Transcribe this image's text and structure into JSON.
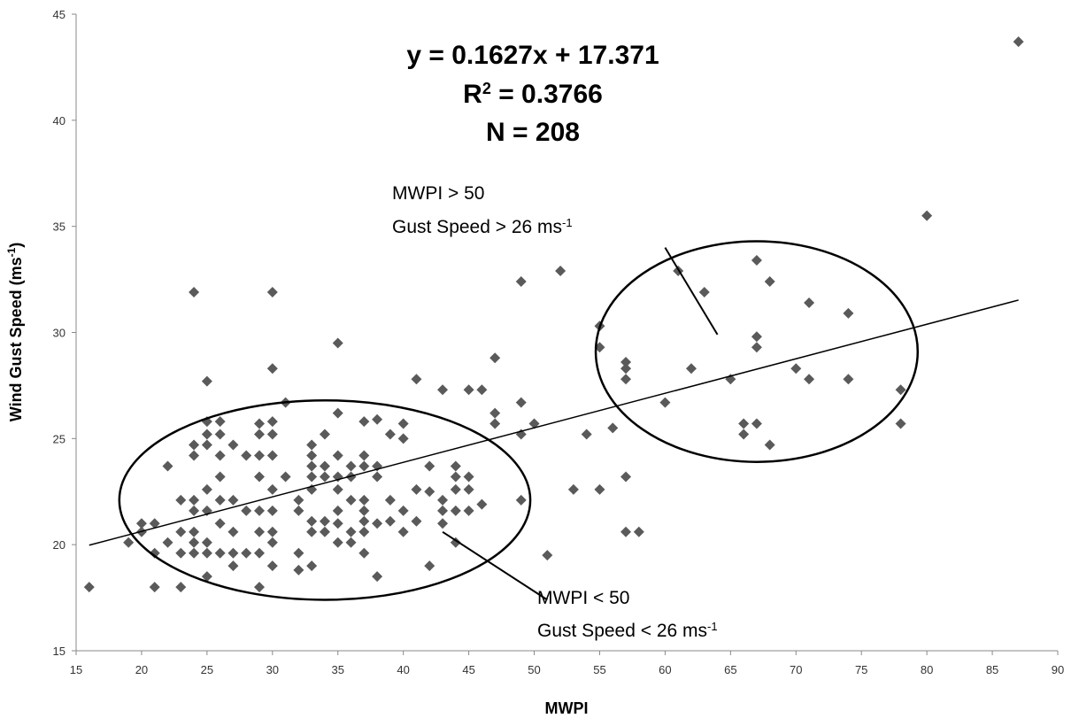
{
  "chart_data": {
    "type": "scatter",
    "xlabel": "MWPI",
    "ylabel": "Wind Gust Speed (ms",
    "ylabel_sup": "-1",
    "ylabel_close": ")",
    "xlim": [
      15,
      90
    ],
    "ylim": [
      15,
      45
    ],
    "xticks": [
      15,
      20,
      25,
      30,
      35,
      40,
      45,
      50,
      55,
      60,
      65,
      70,
      75,
      80,
      85,
      90
    ],
    "yticks": [
      15,
      20,
      25,
      30,
      35,
      40,
      45
    ],
    "grid": false,
    "marker_color": "#5a5a5a",
    "equation": "y = 0.1627x + 17.371",
    "r2_label": "R",
    "r2_sup": "2",
    "r2_value": " = 0.3766",
    "n_text": "N = 208",
    "trendline": {
      "slope": 0.1627,
      "intercept": 17.371,
      "x_start": 16,
      "x_end": 87
    },
    "ellipses": [
      {
        "cx": 34,
        "cy": 22.1,
        "rx": 15.7,
        "ry": 4.7
      },
      {
        "cx": 67,
        "cy": 29.1,
        "rx": 12.3,
        "ry": 5.2
      }
    ],
    "annotations": {
      "high": {
        "line1": "MWPI > 50",
        "line2": "Gust Speed > 26 ms",
        "sup": "-1",
        "pointer": [
          [
            60,
            34
          ],
          [
            64,
            29.9
          ]
        ]
      },
      "low": {
        "line1": "MWPI < 50",
        "line2": "Gust Speed < 26 ms",
        "sup": "-1",
        "pointer": [
          [
            43,
            20.6
          ],
          [
            51,
            17.4
          ]
        ]
      }
    },
    "points": [
      [
        16,
        18.0
      ],
      [
        19,
        20.1
      ],
      [
        20,
        21.0
      ],
      [
        20,
        20.6
      ],
      [
        21,
        21.0
      ],
      [
        21,
        19.6
      ],
      [
        21,
        18.0
      ],
      [
        22,
        23.7
      ],
      [
        22,
        20.1
      ],
      [
        23,
        22.1
      ],
      [
        23,
        20.6
      ],
      [
        23,
        19.6
      ],
      [
        23,
        18.0
      ],
      [
        24,
        31.9
      ],
      [
        24,
        24.7
      ],
      [
        24,
        24.2
      ],
      [
        24,
        22.1
      ],
      [
        24,
        21.6
      ],
      [
        24,
        20.6
      ],
      [
        24,
        20.1
      ],
      [
        24,
        19.6
      ],
      [
        25,
        27.7
      ],
      [
        25,
        25.8
      ],
      [
        25,
        25.2
      ],
      [
        25,
        24.7
      ],
      [
        25,
        22.6
      ],
      [
        25,
        21.6
      ],
      [
        25,
        20.1
      ],
      [
        25,
        19.6
      ],
      [
        25,
        18.5
      ],
      [
        26,
        25.8
      ],
      [
        26,
        25.2
      ],
      [
        26,
        24.2
      ],
      [
        26,
        23.2
      ],
      [
        26,
        22.1
      ],
      [
        26,
        21.0
      ],
      [
        26,
        19.6
      ],
      [
        27,
        24.7
      ],
      [
        27,
        22.1
      ],
      [
        27,
        20.6
      ],
      [
        27,
        19.6
      ],
      [
        27,
        19.0
      ],
      [
        28,
        24.2
      ],
      [
        28,
        21.6
      ],
      [
        28,
        19.6
      ],
      [
        29,
        25.7
      ],
      [
        29,
        25.2
      ],
      [
        29,
        24.2
      ],
      [
        29,
        23.2
      ],
      [
        29,
        21.6
      ],
      [
        29,
        20.6
      ],
      [
        29,
        19.6
      ],
      [
        29,
        18.0
      ],
      [
        30,
        31.9
      ],
      [
        30,
        28.3
      ],
      [
        30,
        25.8
      ],
      [
        30,
        25.2
      ],
      [
        30,
        24.2
      ],
      [
        30,
        22.6
      ],
      [
        30,
        21.6
      ],
      [
        30,
        20.6
      ],
      [
        30,
        20.1
      ],
      [
        30,
        19.0
      ],
      [
        31,
        26.7
      ],
      [
        31,
        23.2
      ],
      [
        32,
        22.1
      ],
      [
        32,
        21.6
      ],
      [
        32,
        19.6
      ],
      [
        32,
        18.8
      ],
      [
        33,
        24.7
      ],
      [
        33,
        24.2
      ],
      [
        33,
        23.7
      ],
      [
        33,
        23.2
      ],
      [
        33,
        22.6
      ],
      [
        33,
        21.1
      ],
      [
        33,
        20.6
      ],
      [
        33,
        19.0
      ],
      [
        34,
        25.2
      ],
      [
        34,
        23.7
      ],
      [
        34,
        23.2
      ],
      [
        34,
        21.1
      ],
      [
        34,
        20.6
      ],
      [
        35,
        29.5
      ],
      [
        35,
        26.2
      ],
      [
        35,
        24.2
      ],
      [
        35,
        23.2
      ],
      [
        35,
        22.6
      ],
      [
        35,
        21.6
      ],
      [
        35,
        21.0
      ],
      [
        35,
        20.1
      ],
      [
        36,
        23.7
      ],
      [
        36,
        23.2
      ],
      [
        36,
        22.1
      ],
      [
        36,
        20.6
      ],
      [
        36,
        20.1
      ],
      [
        37,
        25.8
      ],
      [
        37,
        24.2
      ],
      [
        37,
        23.7
      ],
      [
        37,
        22.1
      ],
      [
        37,
        21.6
      ],
      [
        37,
        21.1
      ],
      [
        37,
        20.6
      ],
      [
        37,
        19.6
      ],
      [
        38,
        25.9
      ],
      [
        38,
        23.7
      ],
      [
        38,
        23.2
      ],
      [
        38,
        21.0
      ],
      [
        38,
        18.5
      ],
      [
        39,
        25.2
      ],
      [
        39,
        22.1
      ],
      [
        39,
        21.1
      ],
      [
        40,
        25.7
      ],
      [
        40,
        25.0
      ],
      [
        40,
        21.6
      ],
      [
        40,
        20.6
      ],
      [
        41,
        27.8
      ],
      [
        41,
        22.6
      ],
      [
        41,
        21.1
      ],
      [
        42,
        23.7
      ],
      [
        42,
        22.5
      ],
      [
        42,
        19.0
      ],
      [
        43,
        27.3
      ],
      [
        43,
        22.1
      ],
      [
        43,
        21.6
      ],
      [
        43,
        21.0
      ],
      [
        44,
        23.7
      ],
      [
        44,
        23.2
      ],
      [
        44,
        22.6
      ],
      [
        44,
        21.6
      ],
      [
        44,
        20.1
      ],
      [
        45,
        27.3
      ],
      [
        45,
        23.2
      ],
      [
        45,
        22.6
      ],
      [
        45,
        21.6
      ],
      [
        46,
        27.3
      ],
      [
        46,
        21.9
      ],
      [
        47,
        28.8
      ],
      [
        47,
        26.2
      ],
      [
        47,
        25.7
      ],
      [
        49,
        32.4
      ],
      [
        49,
        26.7
      ],
      [
        49,
        25.2
      ],
      [
        49,
        22.1
      ],
      [
        50,
        25.7
      ],
      [
        51,
        19.5
      ],
      [
        52,
        32.9
      ],
      [
        53,
        22.6
      ],
      [
        54,
        25.2
      ],
      [
        55,
        30.3
      ],
      [
        55,
        29.3
      ],
      [
        55,
        22.6
      ],
      [
        56,
        25.5
      ],
      [
        57,
        28.6
      ],
      [
        57,
        28.3
      ],
      [
        57,
        27.8
      ],
      [
        57,
        23.2
      ],
      [
        57,
        20.6
      ],
      [
        58,
        20.6
      ],
      [
        60,
        26.7
      ],
      [
        61,
        32.9
      ],
      [
        62,
        28.3
      ],
      [
        63,
        31.9
      ],
      [
        65,
        27.8
      ],
      [
        66,
        25.7
      ],
      [
        66,
        25.2
      ],
      [
        67,
        33.4
      ],
      [
        67,
        29.8
      ],
      [
        67,
        29.3
      ],
      [
        67,
        25.7
      ],
      [
        68,
        32.4
      ],
      [
        68,
        24.7
      ],
      [
        70,
        28.3
      ],
      [
        71,
        31.4
      ],
      [
        71,
        27.8
      ],
      [
        74,
        30.9
      ],
      [
        74,
        27.8
      ],
      [
        78,
        27.3
      ],
      [
        78,
        25.7
      ],
      [
        80,
        35.5
      ],
      [
        87,
        43.7
      ]
    ]
  }
}
